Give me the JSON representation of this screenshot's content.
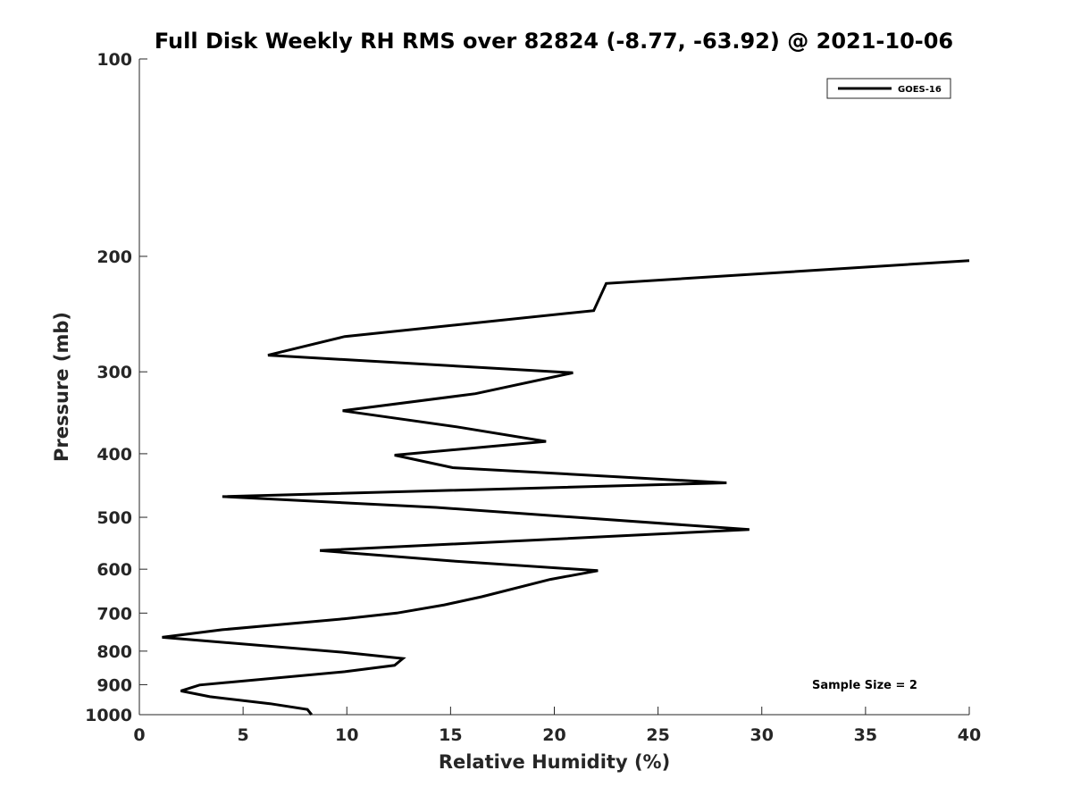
{
  "chart_data": {
    "type": "line",
    "title": "Full Disk Weekly RH RMS over 82824 (-8.77, -63.92) @ 2021-10-06",
    "xlabel": "Relative Humidity (%)",
    "ylabel": "Pressure (mb)",
    "xlim": [
      0,
      40
    ],
    "ylim": [
      100,
      1000
    ],
    "yscale": "log",
    "y_reversed": true,
    "grid": false,
    "legend_position": "top-right",
    "x_ticks": [
      0,
      5,
      10,
      15,
      20,
      25,
      30,
      35,
      40
    ],
    "x_tick_labels": [
      "0",
      "5",
      "10",
      "15",
      "20",
      "25",
      "30",
      "35",
      "40"
    ],
    "y_ticks": [
      100,
      200,
      300,
      400,
      500,
      600,
      700,
      800,
      900,
      1000
    ],
    "y_tick_labels": [
      "100",
      "200",
      "300",
      "400",
      "500",
      "600",
      "700",
      "800",
      "900",
      "1000"
    ],
    "annotation": "Sample Size = 2",
    "series": [
      {
        "name": "GOES-16",
        "color": "#000000",
        "points": [
          {
            "x": 40.0,
            "y": 203
          },
          {
            "x": 22.5,
            "y": 220
          },
          {
            "x": 21.9,
            "y": 242
          },
          {
            "x": 9.9,
            "y": 265
          },
          {
            "x": 6.2,
            "y": 283
          },
          {
            "x": 20.9,
            "y": 301
          },
          {
            "x": 16.2,
            "y": 324
          },
          {
            "x": 9.8,
            "y": 344
          },
          {
            "x": 15.3,
            "y": 364
          },
          {
            "x": 19.6,
            "y": 383
          },
          {
            "x": 12.3,
            "y": 402
          },
          {
            "x": 15.1,
            "y": 420
          },
          {
            "x": 28.3,
            "y": 443
          },
          {
            "x": 4.0,
            "y": 465
          },
          {
            "x": 14.3,
            "y": 483
          },
          {
            "x": 29.4,
            "y": 522
          },
          {
            "x": 8.7,
            "y": 562
          },
          {
            "x": 15.1,
            "y": 583
          },
          {
            "x": 22.1,
            "y": 603
          },
          {
            "x": 19.8,
            "y": 622
          },
          {
            "x": 16.5,
            "y": 661
          },
          {
            "x": 14.7,
            "y": 680
          },
          {
            "x": 12.4,
            "y": 700
          },
          {
            "x": 9.9,
            "y": 714
          },
          {
            "x": 4.0,
            "y": 742
          },
          {
            "x": 1.1,
            "y": 762
          },
          {
            "x": 9.8,
            "y": 803
          },
          {
            "x": 12.7,
            "y": 821
          },
          {
            "x": 12.3,
            "y": 841
          },
          {
            "x": 9.9,
            "y": 860
          },
          {
            "x": 2.9,
            "y": 901
          },
          {
            "x": 2.0,
            "y": 920
          },
          {
            "x": 3.4,
            "y": 939
          },
          {
            "x": 6.3,
            "y": 962
          },
          {
            "x": 8.1,
            "y": 982
          },
          {
            "x": 8.3,
            "y": 1000
          }
        ]
      }
    ]
  }
}
